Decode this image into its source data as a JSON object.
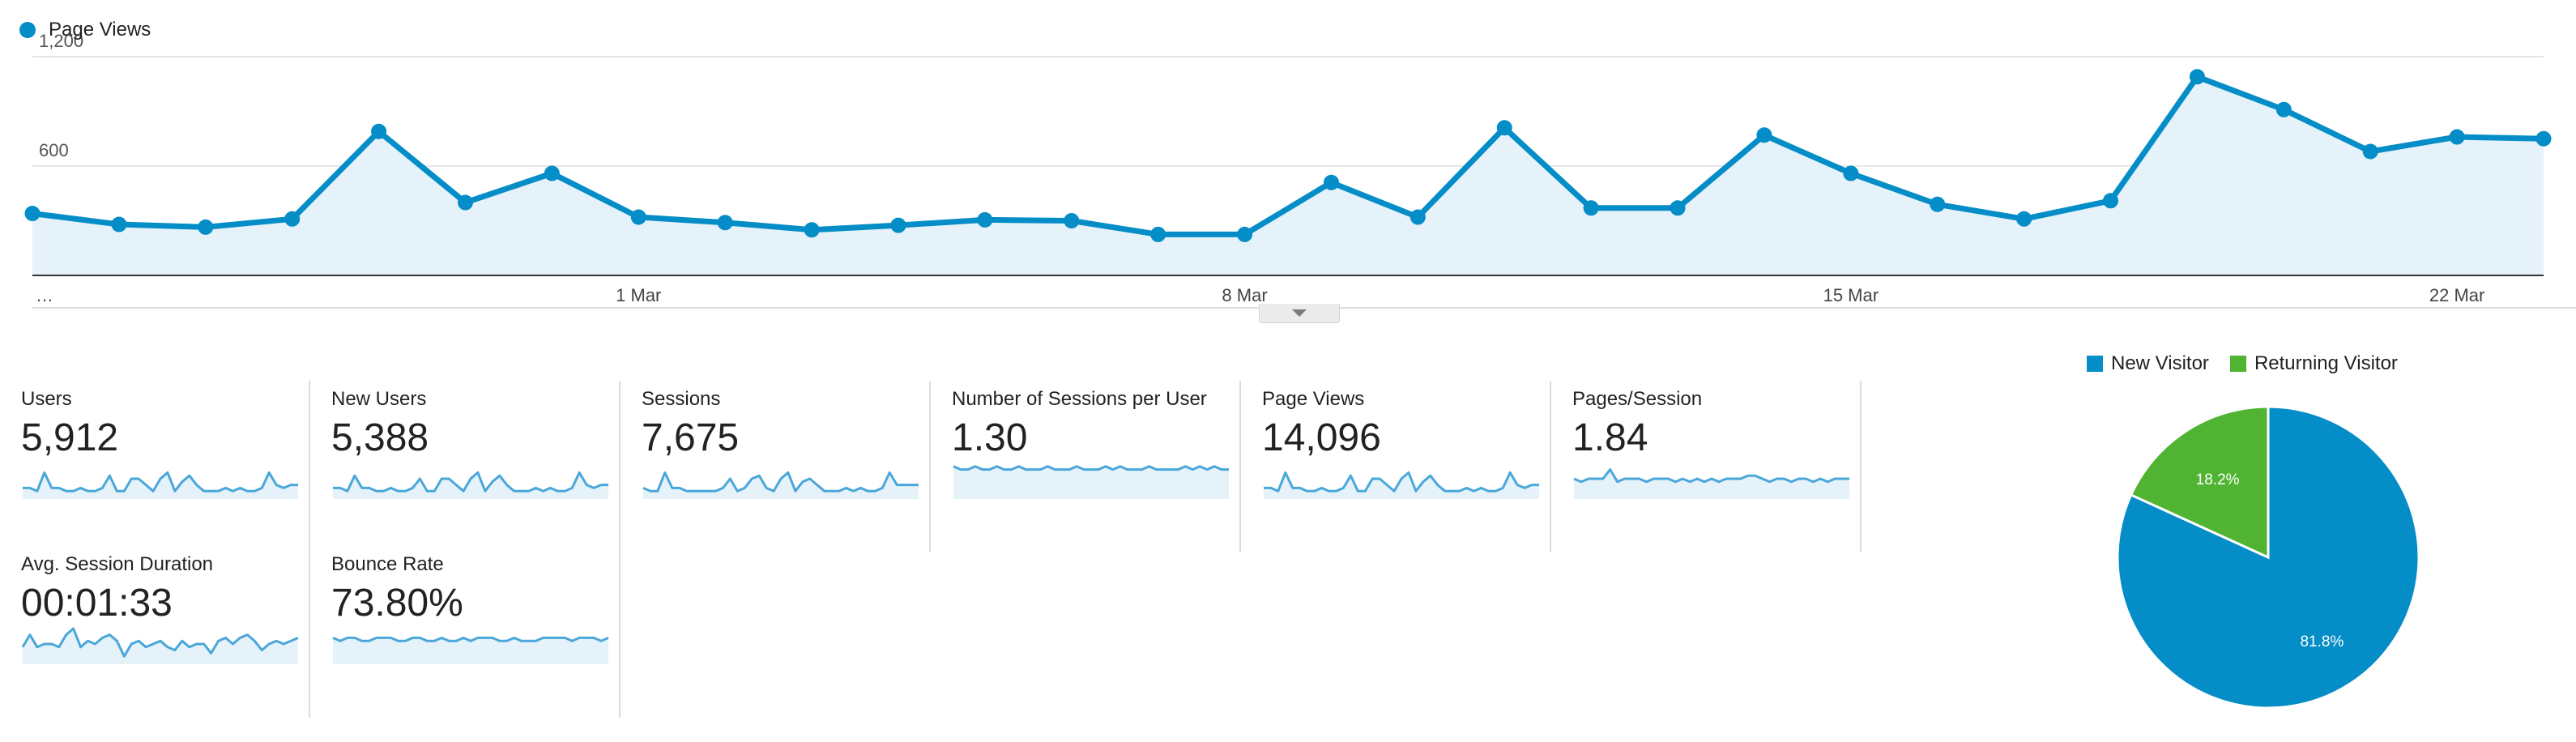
{
  "main_chart": {
    "legend_label": "Page Views",
    "color": "#058dc7",
    "fill_color": "#e6f2fa",
    "y_ticks": [
      "1,200",
      "600"
    ],
    "x_tick_labels": [
      "…",
      "1 Mar",
      "8 Mar",
      "15 Mar",
      "22 Mar"
    ]
  },
  "chart_data": [
    {
      "type": "area",
      "series": [
        {
          "name": "Page Views",
          "values": [
            340,
            280,
            265,
            310,
            790,
            400,
            560,
            320,
            290,
            250,
            275,
            305,
            300,
            225,
            225,
            510,
            320,
            810,
            370,
            370,
            770,
            560,
            390,
            310,
            410,
            1090,
            910,
            680,
            760,
            750
          ]
        }
      ],
      "ylim": [
        0,
        1200
      ],
      "y_ticks": [
        600,
        1200
      ],
      "x_ticks": [
        "1 Mar",
        "8 Mar",
        "15 Mar",
        "22 Mar"
      ],
      "grid": true
    },
    {
      "type": "pie",
      "categories": [
        "New Visitor",
        "Returning Visitor"
      ],
      "values": [
        81.8,
        18.2
      ],
      "labels": [
        "81.8%",
        "18.2%"
      ],
      "colors": [
        "#058dc7",
        "#50b432"
      ]
    }
  ],
  "metrics": [
    {
      "label": "Users",
      "value": "5,912",
      "spark": [
        8,
        8,
        9,
        3,
        8,
        8,
        9,
        9,
        8,
        9,
        9,
        8,
        4,
        9,
        9,
        5,
        5,
        7,
        9,
        5,
        3,
        9,
        6,
        4,
        7,
        9,
        9,
        9,
        8,
        9,
        8,
        9,
        9,
        8,
        3,
        7,
        8,
        7,
        7
      ]
    },
    {
      "label": "New Users",
      "value": "5,388",
      "spark": [
        8,
        8,
        9,
        4,
        8,
        8,
        9,
        9,
        8,
        9,
        9,
        8,
        5,
        9,
        9,
        5,
        5,
        7,
        9,
        5,
        3,
        9,
        6,
        4,
        7,
        9,
        9,
        9,
        8,
        9,
        8,
        9,
        9,
        8,
        3,
        7,
        8,
        7,
        7
      ]
    },
    {
      "label": "Sessions",
      "value": "7,675",
      "spark": [
        8,
        9,
        9,
        3,
        8,
        8,
        9,
        9,
        9,
        9,
        9,
        8,
        5,
        9,
        8,
        5,
        4,
        8,
        9,
        5,
        3,
        9,
        6,
        5,
        7,
        9,
        9,
        9,
        8,
        9,
        8,
        9,
        9,
        8,
        3,
        7,
        7,
        7,
        7
      ]
    },
    {
      "label": "Number of Sessions per User",
      "value": "1.30",
      "spark": [
        1,
        2,
        2,
        1,
        2,
        2,
        1,
        2,
        2,
        1,
        2,
        2,
        2,
        1,
        2,
        2,
        2,
        1,
        2,
        2,
        2,
        1,
        2,
        1,
        2,
        2,
        2,
        1,
        2,
        2,
        2,
        2,
        1,
        2,
        1,
        2,
        1,
        2,
        2
      ]
    },
    {
      "label": "Page Views",
      "value": "14,096",
      "spark": [
        8,
        8,
        9,
        3,
        8,
        8,
        9,
        9,
        8,
        9,
        9,
        8,
        4,
        9,
        9,
        5,
        5,
        7,
        9,
        5,
        3,
        9,
        6,
        4,
        7,
        9,
        9,
        9,
        8,
        9,
        8,
        9,
        9,
        8,
        3,
        7,
        8,
        7,
        7
      ]
    },
    {
      "label": "Pages/Session",
      "value": "1.84",
      "spark": [
        5,
        6,
        5,
        5,
        5,
        2,
        6,
        5,
        5,
        5,
        6,
        5,
        5,
        5,
        6,
        5,
        6,
        5,
        6,
        5,
        6,
        5,
        5,
        5,
        4,
        4,
        5,
        6,
        5,
        5,
        6,
        5,
        5,
        6,
        5,
        6,
        5,
        5,
        5
      ]
    },
    {
      "label": "Avg. Session Duration",
      "value": "00:01:33",
      "spark": [
        6,
        2,
        6,
        5,
        5,
        6,
        2,
        0,
        6,
        4,
        5,
        3,
        2,
        4,
        9,
        5,
        4,
        6,
        5,
        4,
        6,
        7,
        4,
        6,
        5,
        5,
        8,
        4,
        3,
        5,
        3,
        2,
        4,
        7,
        5,
        4,
        5,
        4,
        3
      ]
    },
    {
      "label": "Bounce Rate",
      "value": "73.80%",
      "spark": [
        3,
        4,
        3,
        3,
        4,
        4,
        3,
        3,
        3,
        4,
        4,
        3,
        3,
        4,
        4,
        3,
        4,
        4,
        3,
        4,
        3,
        3,
        3,
        4,
        4,
        3,
        4,
        4,
        4,
        3,
        3,
        3,
        3,
        4,
        3,
        3,
        3,
        4,
        3
      ]
    }
  ],
  "pie": {
    "legend": [
      {
        "label": "New Visitor",
        "color": "#058dc7"
      },
      {
        "label": "Returning Visitor",
        "color": "#50b432"
      }
    ]
  },
  "icons": {
    "collapse": "chevron-down-icon"
  }
}
